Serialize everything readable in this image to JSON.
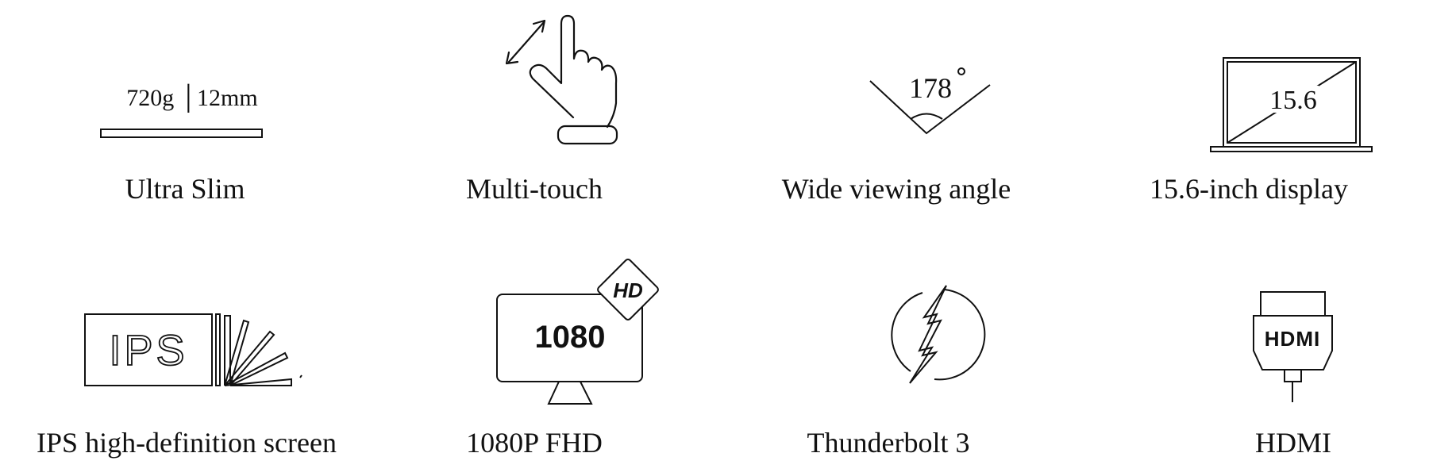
{
  "features": [
    {
      "icon": "ruler-slim-icon",
      "icon_text": "720g │12mm",
      "caption": "Ultra Slim"
    },
    {
      "icon": "multi-touch-hand-icon",
      "caption": "Multi-touch"
    },
    {
      "icon": "viewing-angle-icon",
      "icon_text": "178",
      "icon_unit": "°",
      "caption": "Wide viewing angle"
    },
    {
      "icon": "laptop-diagonal-icon",
      "icon_text": "15.6",
      "caption": "15.6-inch display"
    },
    {
      "icon": "ips-panel-icon",
      "icon_text": "IPS",
      "caption": "IPS high-definition screen"
    },
    {
      "icon": "monitor-hd-icon",
      "icon_text": "1080",
      "badge_text": "HD",
      "caption": "1080P FHD"
    },
    {
      "icon": "thunderbolt-icon",
      "caption": "Thunderbolt 3"
    },
    {
      "icon": "hdmi-connector-icon",
      "icon_text": "HDMI",
      "caption": "HDMI"
    }
  ],
  "colors": {
    "ink": "#111111",
    "background": "#ffffff"
  }
}
